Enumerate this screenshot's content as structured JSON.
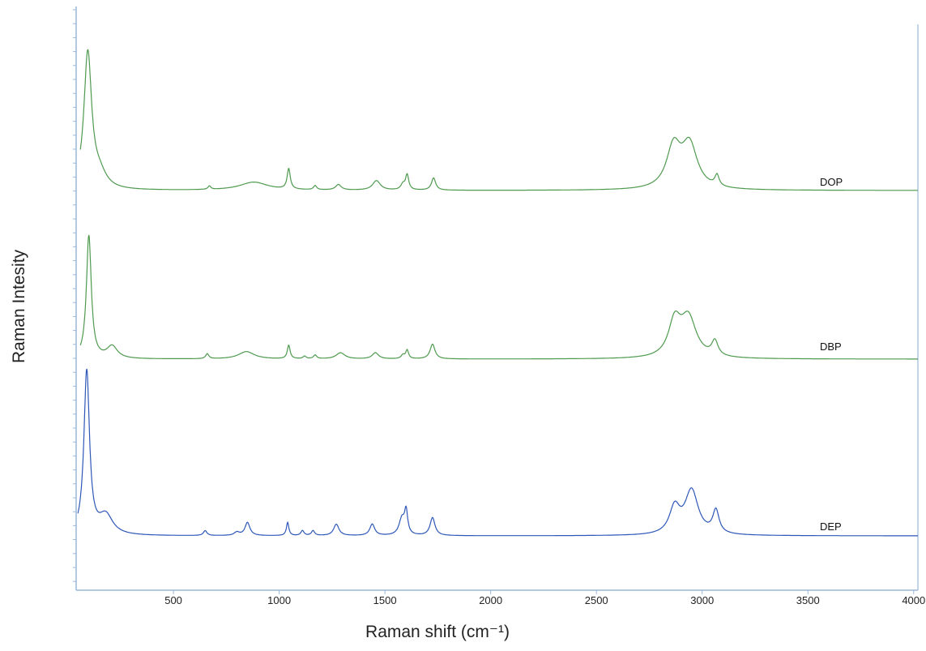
{
  "chart_data": {
    "type": "line",
    "title": "",
    "xlabel": "Raman shift (cm⁻¹)",
    "ylabel": "Raman Intesity",
    "xlim": [
      40,
      4020
    ],
    "x_ticks": [
      500,
      1000,
      1500,
      2000,
      2500,
      3000,
      3500,
      4000
    ],
    "y_tick_labels": "none",
    "grid": false,
    "legend": "inline labels at right end of each trace",
    "stacking": "vertically offset traces, arbitrary intensity units",
    "series": [
      {
        "name": "DOP",
        "color": "#4f9a4f",
        "baseline": 0,
        "peaks": [
          {
            "x": 95,
            "h": 100,
            "w": 22
          },
          {
            "x": 150,
            "h": 10,
            "w": 40
          },
          {
            "x": 670,
            "h": 2.5,
            "w": 8
          },
          {
            "x": 880,
            "h": 6,
            "w": 80
          },
          {
            "x": 1045,
            "h": 15,
            "w": 9
          },
          {
            "x": 1170,
            "h": 3,
            "w": 9
          },
          {
            "x": 1280,
            "h": 4,
            "w": 16
          },
          {
            "x": 1460,
            "h": 7,
            "w": 22
          },
          {
            "x": 1585,
            "h": 4,
            "w": 12
          },
          {
            "x": 1605,
            "h": 11,
            "w": 9
          },
          {
            "x": 1730,
            "h": 9,
            "w": 12
          },
          {
            "x": 2865,
            "h": 30,
            "w": 40
          },
          {
            "x": 2940,
            "h": 32,
            "w": 45
          },
          {
            "x": 3070,
            "h": 8,
            "w": 12
          }
        ]
      },
      {
        "name": "DBP",
        "color": "#4f9a4f",
        "baseline": 0,
        "peaks": [
          {
            "x": 100,
            "h": 100,
            "w": 14
          },
          {
            "x": 210,
            "h": 10,
            "w": 30
          },
          {
            "x": 660,
            "h": 4,
            "w": 9
          },
          {
            "x": 845,
            "h": 6,
            "w": 45
          },
          {
            "x": 1045,
            "h": 11,
            "w": 8
          },
          {
            "x": 1120,
            "h": 2,
            "w": 9
          },
          {
            "x": 1170,
            "h": 3,
            "w": 9
          },
          {
            "x": 1290,
            "h": 5,
            "w": 25
          },
          {
            "x": 1455,
            "h": 5,
            "w": 18
          },
          {
            "x": 1585,
            "h": 3,
            "w": 10
          },
          {
            "x": 1605,
            "h": 7,
            "w": 8
          },
          {
            "x": 1725,
            "h": 12,
            "w": 14
          },
          {
            "x": 2870,
            "h": 28,
            "w": 35
          },
          {
            "x": 2935,
            "h": 32,
            "w": 45
          },
          {
            "x": 3060,
            "h": 12,
            "w": 18
          }
        ]
      },
      {
        "name": "DEP",
        "color": "#2e57b8",
        "baseline": 0,
        "peaks": [
          {
            "x": 90,
            "h": 100,
            "w": 16
          },
          {
            "x": 180,
            "h": 12,
            "w": 40
          },
          {
            "x": 650,
            "h": 3,
            "w": 10
          },
          {
            "x": 800,
            "h": 2,
            "w": 15
          },
          {
            "x": 850,
            "h": 8,
            "w": 14
          },
          {
            "x": 1040,
            "h": 8,
            "w": 7
          },
          {
            "x": 1110,
            "h": 3,
            "w": 9
          },
          {
            "x": 1160,
            "h": 3,
            "w": 9
          },
          {
            "x": 1270,
            "h": 7,
            "w": 15
          },
          {
            "x": 1440,
            "h": 7,
            "w": 14
          },
          {
            "x": 1580,
            "h": 10,
            "w": 16
          },
          {
            "x": 1600,
            "h": 14,
            "w": 9
          },
          {
            "x": 1725,
            "h": 11,
            "w": 14
          },
          {
            "x": 2870,
            "h": 16,
            "w": 30
          },
          {
            "x": 2950,
            "h": 27,
            "w": 38
          },
          {
            "x": 3065,
            "h": 14,
            "w": 18
          }
        ]
      }
    ]
  }
}
